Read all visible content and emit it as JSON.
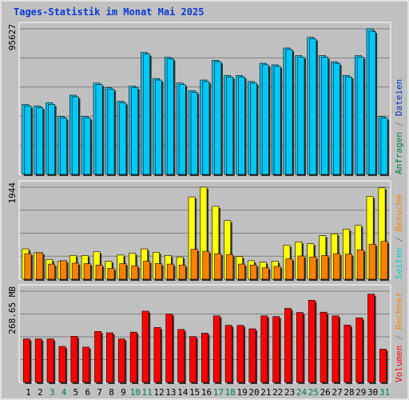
{
  "chart_data": {
    "type": "bar",
    "title": "Tages-Statistik im Monat Mai 2025",
    "days": [
      "1",
      "2",
      "3",
      "4",
      "5",
      "6",
      "7",
      "8",
      "9",
      "10",
      "11",
      "12",
      "13",
      "14",
      "15",
      "16",
      "17",
      "18",
      "19",
      "20",
      "21",
      "22",
      "23",
      "24",
      "25",
      "26",
      "27",
      "28",
      "29",
      "30",
      "31"
    ],
    "weekend_days": [
      "3",
      "4",
      "10",
      "11",
      "17",
      "18",
      "24",
      "25",
      "31"
    ],
    "colors": {
      "background": "#c0c0c0",
      "grid": "#808080",
      "hits": "#00c8f8",
      "hits_label": "#008040",
      "files": "#00c8f8",
      "files_label": "#0033cc",
      "pages": "#ffff00",
      "pages_label": "#00cccc",
      "visits": "#ff8000",
      "visits_label": "#ff8000",
      "kbytes": "#ff0000",
      "kbytes_label": "#ff0000",
      "sites_label": "#ff8000",
      "title": "#0a3ad6",
      "weekend_day": "#008040"
    },
    "panels": [
      {
        "id": "hits_files",
        "max_label": "95627",
        "max": 95627,
        "side_labels": [
          {
            "text": "Anfragen",
            "color_key": "hits_label"
          },
          {
            "text": " / ",
            "color_key": "grid"
          },
          {
            "text": "Dateien",
            "color_key": "files_label"
          }
        ],
        "series": [
          {
            "key": "hits",
            "values": [
              46000,
              45000,
              47000,
              38000,
              52000,
              38000,
              60000,
              57000,
              48000,
              58000,
              80000,
              63000,
              77000,
              60000,
              55000,
              62000,
              75000,
              65000,
              65000,
              61000,
              73000,
              72000,
              83000,
              78000,
              90000,
              78000,
              74000,
              65000,
              78000,
              95627,
              38000
            ]
          },
          {
            "key": "files",
            "values": [
              45000,
              44000,
              46000,
              37000,
              51000,
              37000,
              59000,
              56000,
              47000,
              57000,
              79000,
              62000,
              76000,
              59000,
              54000,
              61000,
              74000,
              64000,
              64000,
              60000,
              72000,
              71000,
              82000,
              77000,
              89000,
              77000,
              73000,
              64000,
              77000,
              94000,
              37000
            ]
          }
        ]
      },
      {
        "id": "pages_visits",
        "max_label": "1944",
        "max": 1944,
        "side_labels": [
          {
            "text": "Seiten",
            "color_key": "pages_label"
          },
          {
            "text": " / ",
            "color_key": "grid"
          },
          {
            "text": "Besuche",
            "color_key": "visits_label"
          }
        ],
        "series": [
          {
            "key": "pages",
            "values": [
              640,
              560,
              420,
              380,
              500,
              500,
              580,
              380,
              510,
              550,
              640,
              570,
              500,
              470,
              1740,
              1944,
              1540,
              1240,
              480,
              390,
              360,
              380,
              720,
              790,
              750,
              920,
              960,
              1060,
              1140,
              1750,
              1930
            ]
          },
          {
            "key": "visits",
            "values": [
              540,
              560,
              320,
              390,
              340,
              330,
              300,
              230,
              330,
              280,
              380,
              330,
              320,
              300,
              630,
              590,
              540,
              520,
              320,
              300,
              240,
              270,
              430,
              490,
              470,
              500,
              540,
              530,
              620,
              740,
              800
            ]
          }
        ]
      },
      {
        "id": "volume",
        "max_label": "268.65 MB",
        "max": 268.65,
        "side_labels": [
          {
            "text": "Volumen",
            "color_key": "kbytes_label"
          },
          {
            "text": " / ",
            "color_key": "grid"
          },
          {
            "text": "Rechner",
            "color_key": "sites_label"
          }
        ],
        "series": [
          {
            "key": "kbytes",
            "values": [
              128,
              128,
              128,
              106,
              136,
              104,
              150,
              146,
              128,
              148,
              210,
              162,
              202,
              156,
              135,
              145,
              196,
              168,
              168,
              158,
              196,
              194,
              218,
              206,
              242,
              207,
              196,
              169,
              190,
              260,
              98
            ]
          }
        ]
      }
    ]
  }
}
